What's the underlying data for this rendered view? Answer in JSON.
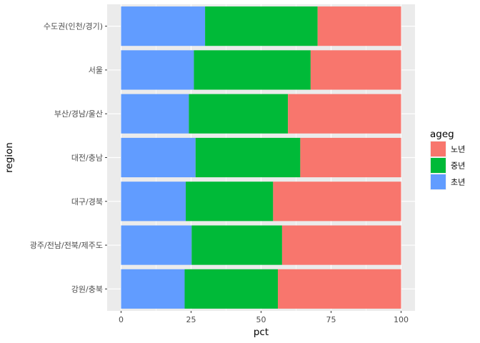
{
  "chart_data": {
    "type": "bar",
    "orientation": "horizontal",
    "stacked": true,
    "xlabel": "pct",
    "ylabel": "region",
    "xlim": [
      0,
      100
    ],
    "x_ticks": [
      0,
      25,
      50,
      75,
      100
    ],
    "grid": true,
    "legend": {
      "title": "ageg",
      "placement": "right",
      "items": [
        {
          "label": "노년",
          "color": "#F8766D"
        },
        {
          "label": "중년",
          "color": "#00BA38"
        },
        {
          "label": "초년",
          "color": "#619CFF"
        }
      ]
    },
    "categories": [
      "수도권(인천/경기)",
      "서울",
      "부산/경남/울산",
      "대전/충남",
      "대구/경북",
      "광주/전남/전북/제주도",
      "강원/충북"
    ],
    "series": [
      {
        "name": "초년",
        "color": "#619CFF",
        "values": [
          30.0,
          26.0,
          24.2,
          26.6,
          23.1,
          25.2,
          22.7
        ]
      },
      {
        "name": "중년",
        "color": "#00BA38",
        "values": [
          40.2,
          41.7,
          35.4,
          37.4,
          31.2,
          32.3,
          33.3
        ]
      },
      {
        "name": "노년",
        "color": "#F8766D",
        "values": [
          29.8,
          32.3,
          40.4,
          36.0,
          45.7,
          42.5,
          44.0
        ]
      }
    ]
  }
}
